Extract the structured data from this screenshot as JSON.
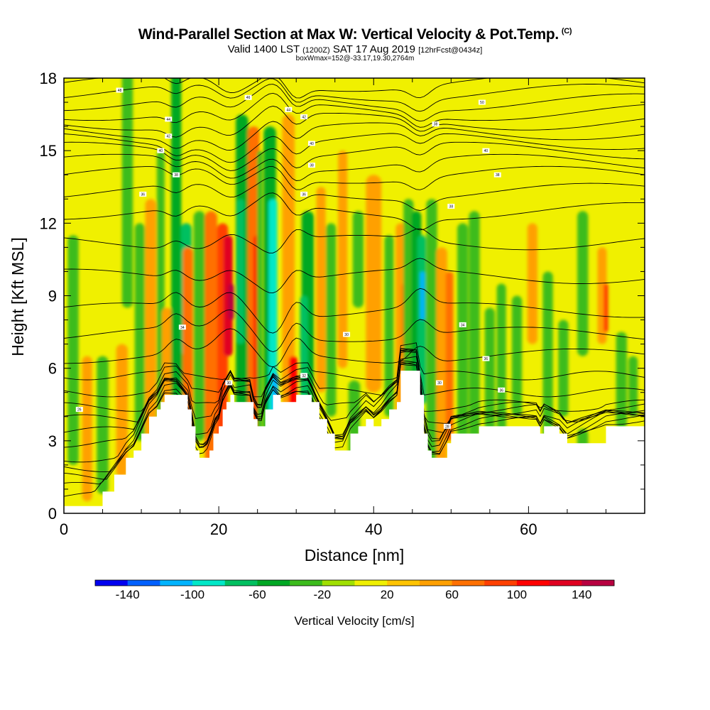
{
  "header": {
    "title": "Wind-Parallel Section at Max W: Vertical Velocity & Pot.Temp.",
    "copyright": "(C)",
    "valid_main": "Valid 1400 LST",
    "valid_z": "(1200Z)",
    "valid_date": "SAT 17 Aug 2019",
    "valid_fcst": "[12hrFcst@0434z]",
    "box_info": "boxWmax=152@-33.17,19.30,2764m"
  },
  "chart_data": {
    "type": "heatmap",
    "xlabel": "Distance [nm]",
    "ylabel": "Height [Kft MSL]",
    "xlim": [
      0,
      75
    ],
    "ylim": [
      0,
      18
    ],
    "xticks": [
      "0",
      "20",
      "40",
      "60"
    ],
    "yticks": [
      "0",
      "3",
      "6",
      "9",
      "12",
      "15",
      "18"
    ],
    "colorbar": {
      "label": "Vertical Velocity [cm/s]",
      "levels": [
        -160,
        -140,
        -120,
        -100,
        -80,
        -60,
        -40,
        -20,
        0,
        20,
        40,
        60,
        80,
        100,
        120,
        140,
        160
      ],
      "tick_labels": [
        "-140",
        "-100",
        "-60",
        "-20",
        "20",
        "60",
        "100",
        "140"
      ],
      "colors": [
        "#0000f0",
        "#0060ff",
        "#00b4ff",
        "#00e8c8",
        "#00c060",
        "#00a824",
        "#3cbc1c",
        "#a0e000",
        "#f0f000",
        "#ffc400",
        "#ffa000",
        "#ff7000",
        "#ff4000",
        "#ff0000",
        "#e00020",
        "#b80040"
      ]
    },
    "terrain": {
      "x": [
        0,
        1,
        3.5,
        5,
        6.5,
        8,
        9,
        10,
        11,
        12,
        12.5,
        13,
        14.5,
        16,
        16.5,
        17,
        17.5,
        18.2,
        18.8,
        19.3,
        20,
        20.5,
        21,
        21.5,
        22,
        22.5,
        24,
        24.5,
        25,
        25.5,
        26,
        27,
        28,
        30,
        31.5,
        32,
        33,
        34,
        35,
        36,
        37,
        38,
        39,
        40,
        41,
        42,
        43,
        43.5,
        45.5,
        46,
        46.5,
        47,
        47.5,
        48.5,
        49.5,
        50,
        53.6,
        61,
        61.5,
        62,
        64,
        65,
        70,
        75
      ],
      "y": [
        0.3,
        0.3,
        0.3,
        0.9,
        1.6,
        2.3,
        2.6,
        3.3,
        4.0,
        4.3,
        4.6,
        4.9,
        4.9,
        4.3,
        3.6,
        2.6,
        2.3,
        2.3,
        2.6,
        3.3,
        3.6,
        4.3,
        4.6,
        4.9,
        4.6,
        4.6,
        4.6,
        3.9,
        3.6,
        3.6,
        4.3,
        4.9,
        4.6,
        4.9,
        4.9,
        4.6,
        3.9,
        3.3,
        2.6,
        2.6,
        3.3,
        3.6,
        3.9,
        3.6,
        3.9,
        4.3,
        4.6,
        5.9,
        5.9,
        4.9,
        3.3,
        2.6,
        2.3,
        2.3,
        2.9,
        3.3,
        3.6,
        3.6,
        3.3,
        3.6,
        3.3,
        2.9,
        3.6,
        3.6
      ]
    },
    "vertical_velocity_bands": [
      {
        "x": 1.2,
        "top": 2.0,
        "bot": 11.5,
        "w": 1.4,
        "v": -40
      },
      {
        "x": 3.0,
        "top": 0.5,
        "bot": 6.5,
        "w": 1.3,
        "v": 40
      },
      {
        "x": 5.0,
        "top": 0.8,
        "bot": 6.5,
        "w": 1.5,
        "v": -40
      },
      {
        "x": 7.5,
        "top": 1.5,
        "bot": 7.0,
        "w": 1.5,
        "v": 40
      },
      {
        "x": 8.2,
        "top": 8.5,
        "bot": 18.5,
        "w": 1.4,
        "v": -30
      },
      {
        "x": 9.8,
        "top": 3.0,
        "bot": 12.0,
        "w": 1.3,
        "v": -40
      },
      {
        "x": 11.2,
        "top": 2.5,
        "bot": 13.0,
        "w": 1.4,
        "v": 40
      },
      {
        "x": 12.5,
        "top": 3.0,
        "bot": 15.0,
        "w": 1.0,
        "v": -40
      },
      {
        "x": 13.3,
        "top": 2.0,
        "bot": 8.5,
        "w": 1.3,
        "v": 40
      },
      {
        "x": 14.5,
        "top": 0.5,
        "bot": 18.5,
        "w": 1.3,
        "v": -60
      },
      {
        "x": 15.0,
        "top": 4.0,
        "bot": 11.0,
        "w": 1.3,
        "v": -60
      },
      {
        "x": 15.8,
        "top": 6.5,
        "bot": 12.0,
        "w": 1.4,
        "v": -80
      },
      {
        "x": 16.0,
        "top": 0.5,
        "bot": 11.0,
        "w": 1.3,
        "v": 60
      },
      {
        "x": 17.5,
        "top": 3.0,
        "bot": 12.5,
        "w": 1.5,
        "v": -40
      },
      {
        "x": 19.0,
        "top": 1.5,
        "bot": 12.5,
        "w": 1.6,
        "v": 60
      },
      {
        "x": 20.5,
        "top": 0.5,
        "bot": 12.0,
        "w": 1.4,
        "v": 80
      },
      {
        "x": 21.2,
        "top": 6.5,
        "bot": 11.5,
        "w": 1.2,
        "v": 120
      },
      {
        "x": 21.6,
        "top": 8.0,
        "bot": 9.5,
        "w": 0.8,
        "v": 140
      },
      {
        "x": 23.0,
        "top": 0.5,
        "bot": 16.5,
        "w": 1.6,
        "v": -60
      },
      {
        "x": 22.8,
        "top": 7.0,
        "bot": 13.0,
        "w": 1.0,
        "v": -80
      },
      {
        "x": 24.5,
        "top": 0.0,
        "bot": 16.0,
        "w": 1.5,
        "v": 60
      },
      {
        "x": 25.0,
        "top": 0.0,
        "bot": 11.5,
        "w": 1.0,
        "v": 100
      },
      {
        "x": 25.3,
        "top": 3.0,
        "bot": 15.0,
        "w": 0.7,
        "v": -40
      },
      {
        "x": 26.6,
        "top": 0.0,
        "bot": 16.0,
        "w": 1.6,
        "v": -60
      },
      {
        "x": 27.0,
        "top": 1.5,
        "bot": 13.0,
        "w": 1.1,
        "v": -100
      },
      {
        "x": 27.3,
        "top": 2.5,
        "bot": 5.8,
        "w": 0.8,
        "v": -120
      },
      {
        "x": 29.0,
        "top": 0.0,
        "bot": 16.5,
        "w": 1.6,
        "v": 40
      },
      {
        "x": 29.6,
        "top": 0.5,
        "bot": 6.5,
        "w": 1.1,
        "v": 100
      },
      {
        "x": 30.2,
        "top": 1.5,
        "bot": 4.5,
        "w": 0.7,
        "v": 120
      },
      {
        "x": 31.5,
        "top": 3.5,
        "bot": 12.5,
        "w": 1.6,
        "v": -60
      },
      {
        "x": 31.0,
        "top": 4.5,
        "bot": 9.0,
        "w": 1.0,
        "v": -80
      },
      {
        "x": 33.2,
        "top": 5.0,
        "bot": 13.5,
        "w": 1.2,
        "v": 40
      },
      {
        "x": 34.5,
        "top": 4.0,
        "bot": 12.0,
        "w": 1.3,
        "v": -40
      },
      {
        "x": 36.0,
        "top": 6.0,
        "bot": 15.0,
        "w": 1.2,
        "v": 40
      },
      {
        "x": 38.0,
        "top": 8.5,
        "bot": 12.5,
        "w": 1.4,
        "v": -40
      },
      {
        "x": 37.5,
        "top": 0.5,
        "bot": 5.5,
        "w": 1.5,
        "v": -30
      },
      {
        "x": 40.0,
        "top": 5.0,
        "bot": 14.0,
        "w": 2.0,
        "v": 40
      },
      {
        "x": 42.0,
        "top": 4.0,
        "bot": 11.5,
        "w": 1.2,
        "v": -40
      },
      {
        "x": 43.5,
        "top": 0.5,
        "bot": 12.0,
        "w": 1.3,
        "v": 40
      },
      {
        "x": 44.0,
        "top": 2.0,
        "bot": 9.5,
        "w": 0.8,
        "v": 60
      },
      {
        "x": 44.5,
        "top": 0.5,
        "bot": 13.0,
        "w": 1.3,
        "v": -40
      },
      {
        "x": 45.5,
        "top": 3.0,
        "bot": 12.5,
        "w": 1.3,
        "v": -60
      },
      {
        "x": 46.2,
        "top": 4.5,
        "bot": 11.5,
        "w": 1.1,
        "v": -80
      },
      {
        "x": 46.3,
        "top": 8.0,
        "bot": 10.0,
        "w": 0.6,
        "v": -110
      },
      {
        "x": 47.5,
        "top": 0.5,
        "bot": 13.0,
        "w": 1.4,
        "v": -40
      },
      {
        "x": 48.8,
        "top": 2.0,
        "bot": 11.0,
        "w": 1.4,
        "v": 40
      },
      {
        "x": 49.8,
        "top": 3.0,
        "bot": 10.0,
        "w": 1.0,
        "v": 60
      },
      {
        "x": 51.5,
        "top": 1.0,
        "bot": 12.0,
        "w": 1.4,
        "v": -40
      },
      {
        "x": 53.0,
        "top": 1.0,
        "bot": 12.5,
        "w": 1.4,
        "v": -30
      },
      {
        "x": 55.0,
        "top": 0.5,
        "bot": 8.5,
        "w": 1.3,
        "v": -40
      },
      {
        "x": 56.5,
        "top": 1.0,
        "bot": 9.5,
        "w": 1.2,
        "v": -40
      },
      {
        "x": 58.5,
        "top": 4.0,
        "bot": 9.0,
        "w": 1.3,
        "v": -30
      },
      {
        "x": 60.5,
        "top": 7.0,
        "bot": 12.0,
        "w": 1.3,
        "v": 40
      },
      {
        "x": 62.5,
        "top": 3.0,
        "bot": 10.0,
        "w": 1.3,
        "v": -30
      },
      {
        "x": 64.5,
        "top": 4.0,
        "bot": 8.0,
        "w": 1.3,
        "v": -40
      },
      {
        "x": 67.0,
        "top": 6.5,
        "bot": 12.5,
        "w": 1.4,
        "v": -30
      },
      {
        "x": 67.0,
        "top": 1.5,
        "bot": 3.5,
        "w": 1.4,
        "v": -30
      },
      {
        "x": 69.5,
        "top": 7.0,
        "bot": 11.0,
        "w": 1.2,
        "v": 40
      },
      {
        "x": 70.0,
        "top": 7.5,
        "bot": 9.5,
        "w": 0.6,
        "v": 80
      },
      {
        "x": 72.0,
        "top": 3.5,
        "bot": 7.5,
        "w": 1.4,
        "v": -40
      },
      {
        "x": 73.5,
        "top": 4.0,
        "bot": 6.5,
        "w": 1.2,
        "v": -40
      }
    ],
    "theta_contours": [
      {
        "base": 0.7
      },
      {
        "base": 1.1
      },
      {
        "base": 1.5
      },
      {
        "base": 1.9
      },
      {
        "base": 2.3
      },
      {
        "base": 2.9
      },
      {
        "base": 3.4
      },
      {
        "base": 3.9
      },
      {
        "base": 4.4
      },
      {
        "base": 5.0
      },
      {
        "base": 5.7
      },
      {
        "base": 6.5
      },
      {
        "base": 7.4
      },
      {
        "base": 8.4
      },
      {
        "base": 9.8
      },
      {
        "base": 11.2
      },
      {
        "base": 12.5
      },
      {
        "base": 13.3
      },
      {
        "base": 14.0
      },
      {
        "base": 14.5
      },
      {
        "base": 15.0
      },
      {
        "base": 15.4
      },
      {
        "base": 15.8
      },
      {
        "base": 16.2
      },
      {
        "base": 16.6
      },
      {
        "base": 17.0
      },
      {
        "base": 17.4
      },
      {
        "base": 17.8
      }
    ],
    "contour_labels": [
      {
        "x": 2.0,
        "y": 4.3,
        "text": "26"
      },
      {
        "x": 15.3,
        "y": 7.7,
        "text": "34"
      },
      {
        "x": 21.3,
        "y": 5.4,
        "text": "30"
      },
      {
        "x": 31.0,
        "y": 5.7,
        "text": "32"
      },
      {
        "x": 36.5,
        "y": 7.4,
        "text": "30"
      },
      {
        "x": 48.5,
        "y": 5.4,
        "text": "30"
      },
      {
        "x": 49.5,
        "y": 3.6,
        "text": "28"
      },
      {
        "x": 51.5,
        "y": 7.8,
        "text": "34"
      },
      {
        "x": 54.5,
        "y": 6.4,
        "text": "36"
      },
      {
        "x": 56.5,
        "y": 5.1,
        "text": "36"
      },
      {
        "x": 10.2,
        "y": 13.2,
        "text": "36"
      },
      {
        "x": 14.5,
        "y": 14.0,
        "text": "38"
      },
      {
        "x": 12.5,
        "y": 15.0,
        "text": "40"
      },
      {
        "x": 13.5,
        "y": 15.6,
        "text": "42"
      },
      {
        "x": 13.5,
        "y": 16.3,
        "text": "44"
      },
      {
        "x": 7.2,
        "y": 17.5,
        "text": "48"
      },
      {
        "x": 23.8,
        "y": 17.2,
        "text": "46"
      },
      {
        "x": 29.0,
        "y": 16.7,
        "text": "44"
      },
      {
        "x": 31.0,
        "y": 16.4,
        "text": "42"
      },
      {
        "x": 32.0,
        "y": 15.3,
        "text": "40"
      },
      {
        "x": 32.0,
        "y": 14.4,
        "text": "38"
      },
      {
        "x": 31.0,
        "y": 13.2,
        "text": "36"
      },
      {
        "x": 50.0,
        "y": 12.7,
        "text": "38"
      },
      {
        "x": 48.0,
        "y": 16.1,
        "text": "38"
      },
      {
        "x": 54.5,
        "y": 15.0,
        "text": "40"
      },
      {
        "x": 56.0,
        "y": 14.0,
        "text": "38"
      },
      {
        "x": 54.0,
        "y": 17.0,
        "text": "50"
      }
    ]
  }
}
